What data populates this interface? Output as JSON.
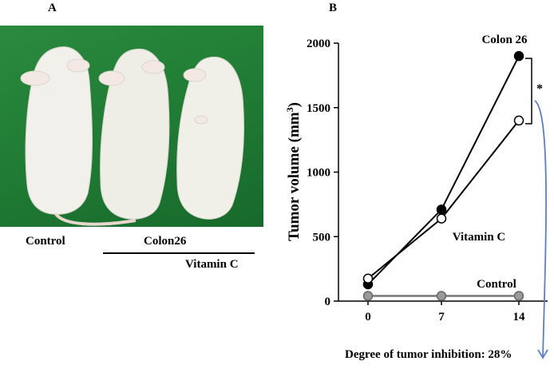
{
  "panels": {
    "a_label": "A",
    "b_label": "B"
  },
  "photo": {
    "background_color": "#1f7a33",
    "labels": {
      "control": "Control",
      "colon26": "Colon26",
      "vitamin_c": "Vitamin C"
    }
  },
  "chart_data": {
    "type": "line",
    "x": [
      0,
      7,
      14
    ],
    "xticks": [
      "0",
      "7",
      "14"
    ],
    "ylabel": "Tumor volume (mm3)",
    "ylabel_main": "Tumor volume (mm",
    "ylabel_sup": "3",
    "ylabel_close": ")",
    "ylim": [
      0,
      2000
    ],
    "yticks": [
      "0",
      "500",
      "1000",
      "1500",
      "2000"
    ],
    "grid": false,
    "series": [
      {
        "name": "Colon 26",
        "values": [
          130,
          710,
          1900
        ],
        "marker": "filled",
        "color": "#000000"
      },
      {
        "name": "Vitamin C",
        "values": [
          175,
          640,
          1400
        ],
        "marker": "open",
        "color": "#000000"
      },
      {
        "name": "Control",
        "values": [
          40,
          40,
          40
        ],
        "marker": "grey",
        "color": "#888888"
      }
    ],
    "significance": "*",
    "footnote": "Degree of tumor inhibition: 28%",
    "arrow_color": "#5b7fc7"
  }
}
